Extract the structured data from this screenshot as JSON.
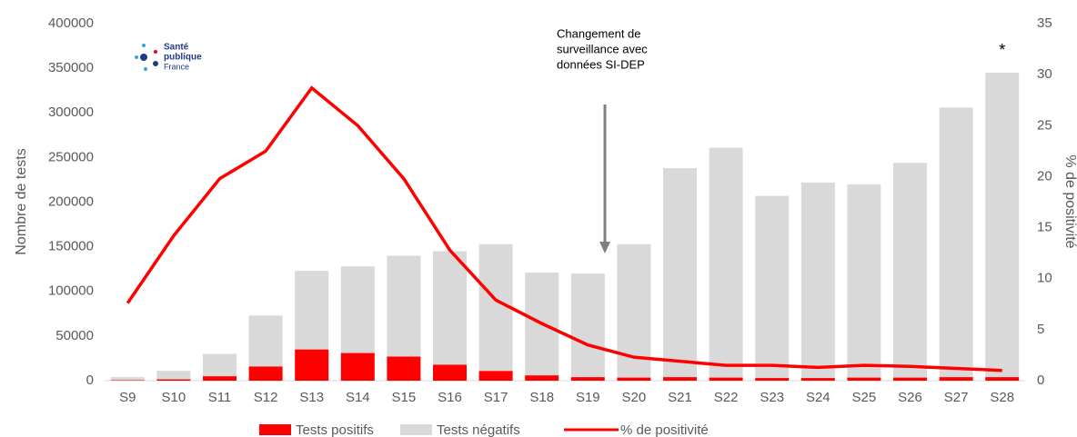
{
  "chart_data": {
    "type": "bar",
    "categories": [
      "S9",
      "S10",
      "S11",
      "S12",
      "S13",
      "S14",
      "S15",
      "S16",
      "S17",
      "S18",
      "S19",
      "S20",
      "S21",
      "S22",
      "S23",
      "S24",
      "S25",
      "S26",
      "S27",
      "S28"
    ],
    "series": [
      {
        "name": "Tests positifs",
        "color": "#ff0000",
        "values": [
          500,
          1500,
          5000,
          16000,
          35000,
          31000,
          27000,
          18000,
          11000,
          6000,
          4000,
          3500,
          4000,
          3500,
          3000,
          3000,
          3500,
          3500,
          4000,
          4000
        ]
      },
      {
        "name": "Tests négatifs",
        "color": "#d9d9d9",
        "values": [
          3500,
          9500,
          25000,
          57000,
          88000,
          97000,
          113000,
          127000,
          142000,
          115000,
          116000,
          149500,
          234000,
          257500,
          204000,
          219000,
          216500,
          240500,
          302000,
          341000
        ]
      },
      {
        "name": "% de positivité",
        "color": "#ff0000",
        "axis": "y2",
        "type": "line",
        "values": [
          7.6,
          14.2,
          19.8,
          22.5,
          28.7,
          25.0,
          19.8,
          12.8,
          7.9,
          5.6,
          3.5,
          2.3,
          1.9,
          1.5,
          1.5,
          1.3,
          1.5,
          1.4,
          1.2,
          1.0
        ]
      }
    ],
    "ylabel": "Nombre de tests",
    "y2label": "% de positivité",
    "ylim": [
      0,
      400000
    ],
    "yticks": [
      0,
      50000,
      100000,
      150000,
      200000,
      250000,
      300000,
      350000,
      400000
    ],
    "y2lim": [
      0,
      35
    ],
    "y2ticks": [
      0,
      5,
      10,
      15,
      20,
      25,
      30,
      35
    ],
    "annotation": [
      "Changement de",
      "surveillance avec",
      "données SI-DEP"
    ],
    "asterisk": "*",
    "logo": [
      "Santé",
      "publique",
      "France"
    ]
  }
}
